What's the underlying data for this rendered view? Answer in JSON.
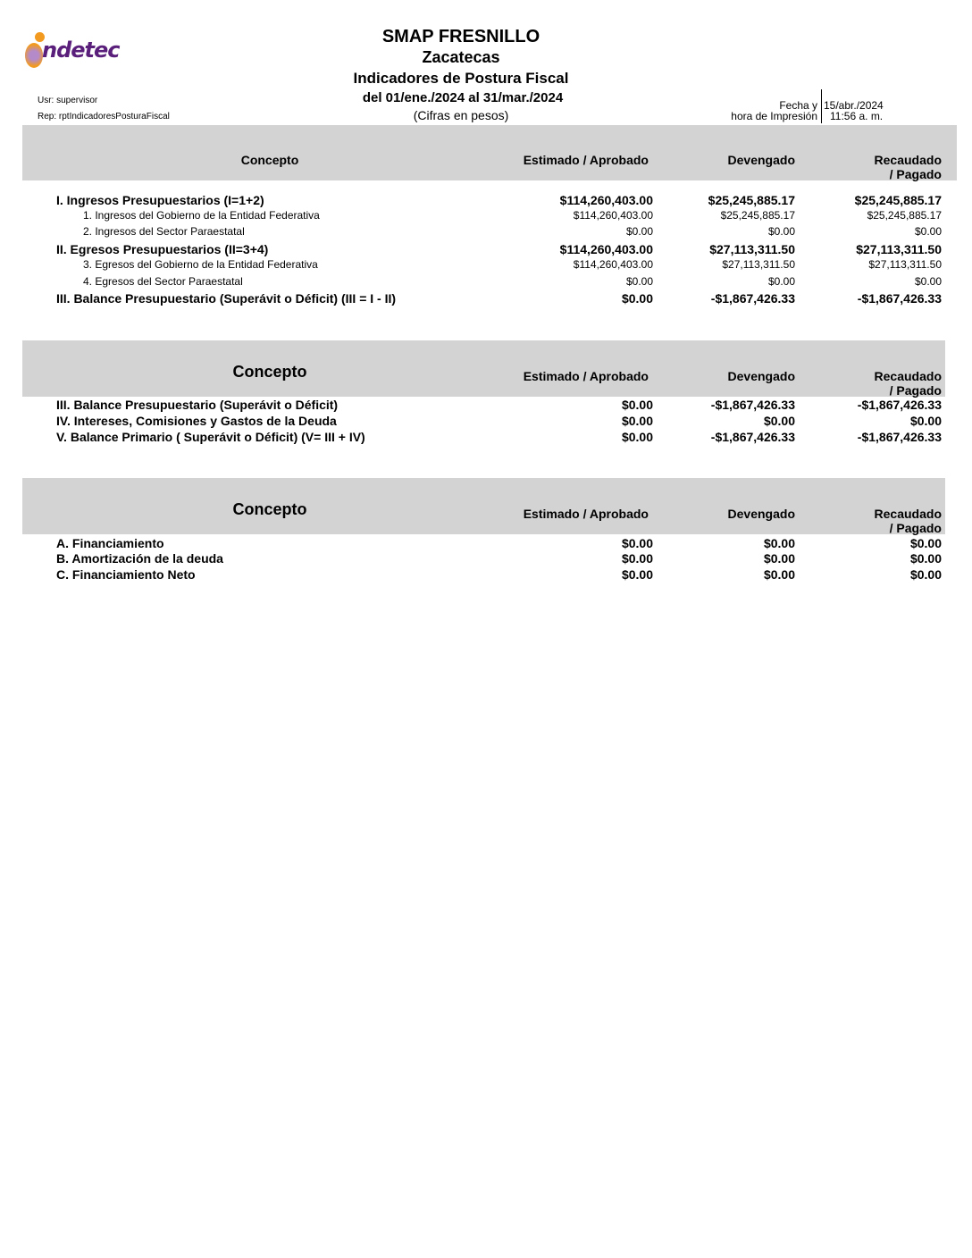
{
  "header": {
    "logo_text": "indetec",
    "entity": "SMAP FRESNILLO",
    "state": "Zacatecas",
    "report_title": "Indicadores de Postura Fiscal",
    "period": "del 01/ene./2024 al 31/mar./2024",
    "units": "(Cifras en pesos)",
    "user": "Usr: supervisor",
    "report": "Rep: rptIndicadoresPosturaFiscal",
    "print_label_1": "Fecha y",
    "print_label_2": "hora de Impresión",
    "print_date": "15/abr./2024",
    "print_time": "11:56 a. m."
  },
  "columns": {
    "concept": "Concepto",
    "estimated": "Estimado / Aprobado",
    "accrued": "Devengado",
    "collected": "Recaudado / Pagado"
  },
  "sections": [
    {
      "rows": [
        {
          "label": "I. Ingresos Presupuestarios (I=1+2)",
          "bold": true,
          "values": [
            "$114,260,403.00",
            "$25,245,885.17",
            "$25,245,885.17"
          ]
        },
        {
          "label": "1. Ingresos del Gobierno de la Entidad Federativa",
          "bold": false,
          "values": [
            "$114,260,403.00",
            "$25,245,885.17",
            "$25,245,885.17"
          ]
        },
        {
          "label": "2. Ingresos del Sector Paraestatal",
          "bold": false,
          "values": [
            "$0.00",
            "$0.00",
            "$0.00"
          ]
        },
        {
          "label": "II. Egresos Presupuestarios (II=3+4)",
          "bold": true,
          "values": [
            "$114,260,403.00",
            "$27,113,311.50",
            "$27,113,311.50"
          ]
        },
        {
          "label": "3. Egresos del Gobierno de la Entidad Federativa",
          "bold": false,
          "values": [
            "$114,260,403.00",
            "$27,113,311.50",
            "$27,113,311.50"
          ]
        },
        {
          "label": "4. Egresos del Sector Paraestatal",
          "bold": false,
          "values": [
            "$0.00",
            "$0.00",
            "$0.00"
          ]
        },
        {
          "label": "III. Balance Presupuestario (Superávit o Déficit) (III = I - II)",
          "bold": true,
          "values": [
            "$0.00",
            "-$1,867,426.33",
            "-$1,867,426.33"
          ]
        }
      ]
    },
    {
      "rows": [
        {
          "label": "III. Balance Presupuestario (Superávit o Déficit)",
          "bold": true,
          "values": [
            "$0.00",
            "-$1,867,426.33",
            "-$1,867,426.33"
          ]
        },
        {
          "label": "IV. Intereses, Comisiones y Gastos de la Deuda",
          "bold": true,
          "values": [
            "$0.00",
            "$0.00",
            "$0.00"
          ]
        },
        {
          "label": "V. Balance Primario ( Superávit o Déficit) (V= III + IV)",
          "bold": true,
          "values": [
            "$0.00",
            "-$1,867,426.33",
            "-$1,867,426.33"
          ]
        }
      ]
    },
    {
      "rows": [
        {
          "label": "A. Financiamiento",
          "bold": true,
          "values": [
            "$0.00",
            "$0.00",
            "$0.00"
          ]
        },
        {
          "label": "B.  Amortización de la deuda",
          "bold": true,
          "values": [
            "$0.00",
            "$0.00",
            "$0.00"
          ]
        },
        {
          "label": "C. Financiamiento Neto",
          "bold": true,
          "values": [
            "$0.00",
            "$0.00",
            "$0.00"
          ]
        }
      ]
    }
  ],
  "colors": {
    "band": "#d3d3d3",
    "logo_purple": "#5a1f7a",
    "logo_orange": "#f29a1f"
  }
}
